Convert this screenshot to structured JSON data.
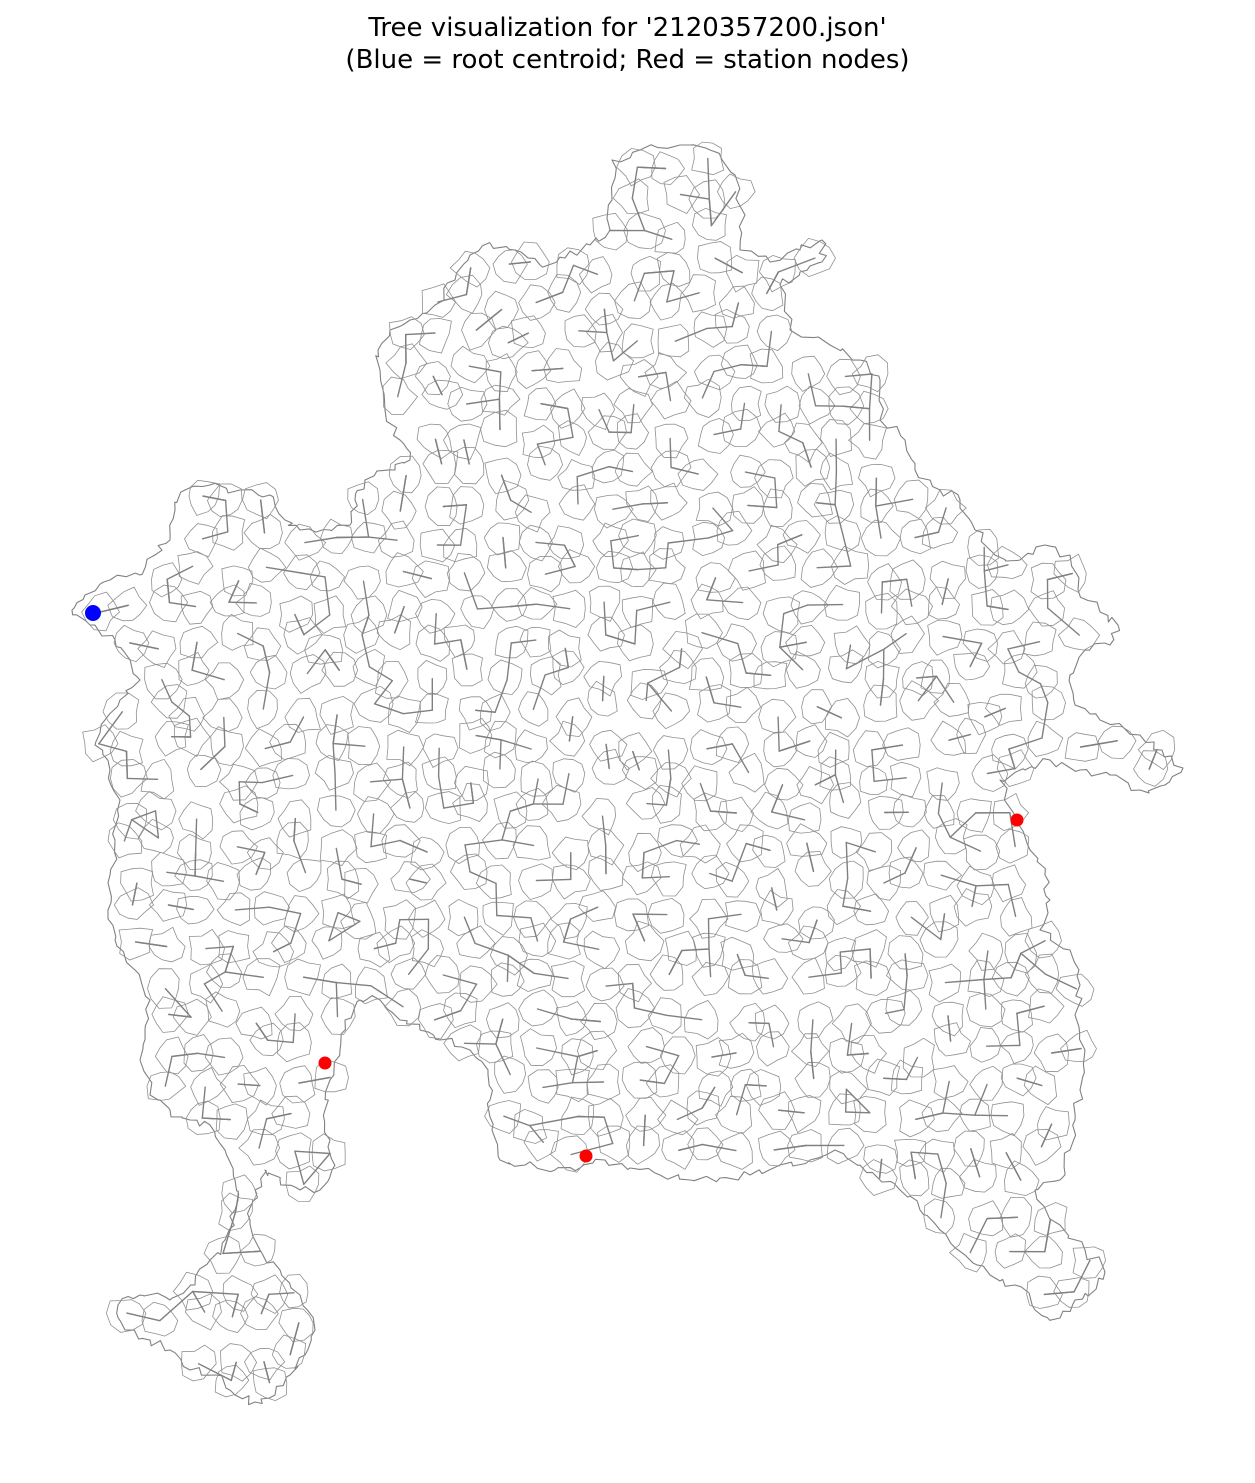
{
  "figure": {
    "title_line1": "Tree visualization for '2120357200.json'",
    "title_line2": "(Blue = root centroid; Red = station nodes)"
  },
  "colors": {
    "edges": "#808080",
    "boundary": "#808080",
    "root": "#0000ff",
    "station": "#ff0000",
    "background": "#ffffff"
  },
  "markers": {
    "root_count": 1,
    "station_count": 3
  }
}
